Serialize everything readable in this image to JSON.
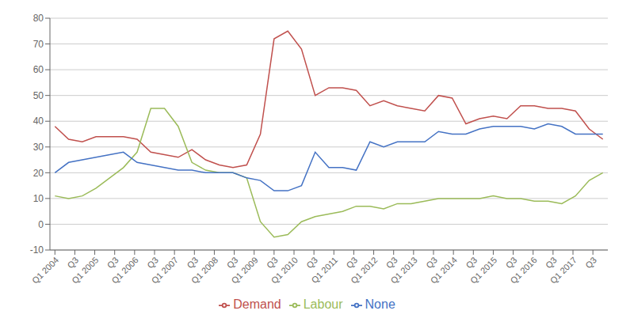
{
  "chart_data": {
    "type": "line",
    "x": [
      0,
      1.375,
      2.75,
      4.125,
      5.5,
      6.875,
      8.25,
      9.625,
      11,
      12.375,
      13.75,
      15.125,
      16.5,
      17.875,
      19.25,
      20.625,
      22,
      23.375,
      24.75,
      26.125,
      27.5,
      28.875,
      30.25,
      31.625,
      33,
      34.375,
      35.75,
      37.125,
      38.5,
      39.875,
      41.25,
      42.625,
      44,
      45.375,
      46.75,
      48.125,
      49.5,
      50.875,
      52.25,
      53.625,
      55
    ],
    "series": [
      {
        "name": "Demand",
        "color": "#C0504D",
        "values": [
          38,
          33,
          32,
          34,
          34,
          34,
          33,
          28,
          27,
          26,
          29,
          25,
          23,
          22,
          23,
          35,
          72,
          75,
          68,
          50,
          53,
          53,
          52,
          46,
          48,
          46,
          45,
          44,
          50,
          49,
          39,
          41,
          42,
          41,
          46,
          46,
          45,
          45,
          44,
          37,
          33
        ]
      },
      {
        "name": "Labour",
        "color": "#9BBB59",
        "values": [
          11,
          10,
          11,
          14,
          18,
          22,
          28,
          45,
          45,
          38,
          24,
          21,
          20,
          20,
          18,
          1,
          -5,
          -4,
          1,
          3,
          4,
          5,
          7,
          7,
          6,
          8,
          8,
          9,
          10,
          10,
          10,
          10,
          11,
          10,
          10,
          9,
          9,
          8,
          11,
          17,
          20
        ]
      },
      {
        "name": "None",
        "color": "#4472C4",
        "values": [
          20,
          24,
          25,
          26,
          27,
          28,
          24,
          23,
          22,
          21,
          21,
          20,
          20,
          20,
          18,
          17,
          13,
          13,
          15,
          28,
          22,
          22,
          21,
          32,
          30,
          32,
          32,
          32,
          36,
          35,
          35,
          37,
          38,
          38,
          38,
          37,
          39,
          38,
          35,
          35,
          35
        ]
      }
    ],
    "xlim": [
      -0.5,
      55.5
    ],
    "xticks": [
      {
        "value": 0,
        "label": "Q1 2004"
      },
      {
        "value": 2,
        "label": "Q3"
      },
      {
        "value": 4,
        "label": "Q1 2005"
      },
      {
        "value": 6,
        "label": "Q3"
      },
      {
        "value": 8,
        "label": "Q1 2006"
      },
      {
        "value": 10,
        "label": "Q3"
      },
      {
        "value": 12,
        "label": "Q1 2007"
      },
      {
        "value": 14,
        "label": "Q3"
      },
      {
        "value": 16,
        "label": "Q1 2008"
      },
      {
        "value": 18,
        "label": "Q3"
      },
      {
        "value": 20,
        "label": "Q1 2009"
      },
      {
        "value": 22,
        "label": "Q3"
      },
      {
        "value": 24,
        "label": "Q1 2010"
      },
      {
        "value": 26,
        "label": "Q3"
      },
      {
        "value": 28,
        "label": "Q1 2011"
      },
      {
        "value": 30,
        "label": "Q3"
      },
      {
        "value": 32,
        "label": "Q1 2012"
      },
      {
        "value": 34,
        "label": "Q3"
      },
      {
        "value": 36,
        "label": "Q1 2013"
      },
      {
        "value": 38,
        "label": "Q3"
      },
      {
        "value": 40,
        "label": "Q1 2014"
      },
      {
        "value": 42,
        "label": "Q3"
      },
      {
        "value": 44,
        "label": "Q1 2015"
      },
      {
        "value": 46,
        "label": "Q3"
      },
      {
        "value": 48,
        "label": "Q1 2016"
      },
      {
        "value": 50,
        "label": "Q3"
      },
      {
        "value": 52,
        "label": "Q1 2017"
      },
      {
        "value": 54,
        "label": "Q3"
      }
    ],
    "ylim": [
      -10,
      80
    ],
    "yticks": [
      -10,
      0,
      10,
      20,
      30,
      40,
      50,
      60,
      70,
      80
    ],
    "grid": true,
    "legend": "bottom"
  }
}
